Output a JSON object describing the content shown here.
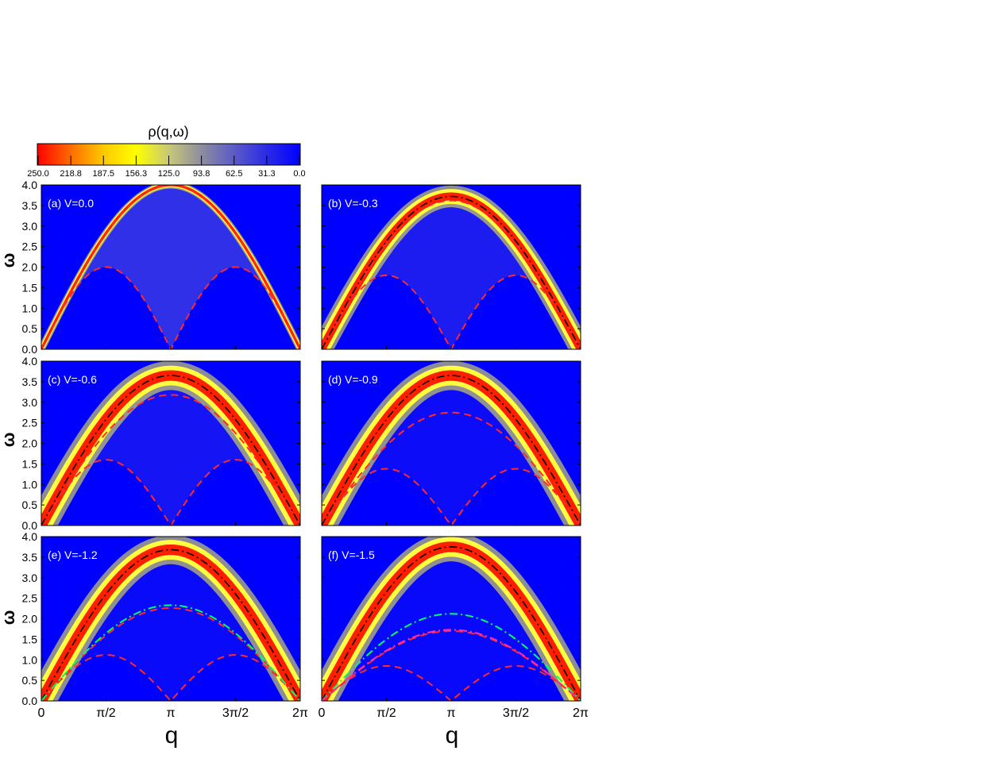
{
  "colorbar": {
    "title": "ρ(q,ω)",
    "ticks": [
      "250.0",
      "218.8",
      "187.5",
      "156.3",
      "125.0",
      "93.8",
      "62.5",
      "31.3",
      "0.0"
    ],
    "stops": [
      "#ff0000",
      "#ff6a00",
      "#ffc800",
      "#ffff00",
      "#c8c878",
      "#8c8ca0",
      "#5a5ac8",
      "#2a2ae6",
      "#0000ff"
    ]
  },
  "colors": {
    "background": "#0000ff",
    "continuum": "#5050d8",
    "peak_edge": "#ffff40",
    "peak_core": "#ff1e00",
    "dashed_bounds": "#ff2a2a",
    "black_dashdot": "#000000",
    "green_dashdot": "#00ff60",
    "magenta_dashdot": "#ff2aa0"
  },
  "axes": {
    "ylabel": "ω",
    "xlabel": "q",
    "yticks": [
      "0.0",
      "0.5",
      "1.0",
      "1.5",
      "2.0",
      "2.5",
      "3.0",
      "3.5",
      "4.0"
    ],
    "xticks": [
      "0",
      "π/2",
      "π",
      "3π/2",
      "2π"
    ],
    "ylim": [
      0,
      4
    ],
    "xlim_pi_units": [
      0,
      2
    ]
  },
  "chart_data": [
    {
      "type": "heatmap",
      "label": "(a) V=0.0",
      "V": 0.0,
      "upper_bound_max": 4.0,
      "lower_bound_max": 2.0,
      "peak_max": 4.0,
      "peak_width": 0.02,
      "black_dashdot": false,
      "green_dashdot_max": null,
      "magenta_dashdot_max": null,
      "continuum": 0.6
    },
    {
      "type": "heatmap",
      "label": "(b) V=-0.3",
      "V": -0.3,
      "upper_bound_max": 3.62,
      "lower_bound_max": 1.8,
      "peak_max": 3.72,
      "peak_width": 0.06,
      "black_dashdot": true,
      "green_dashdot_max": null,
      "magenta_dashdot_max": null,
      "continuum": 0.35
    },
    {
      "type": "heatmap",
      "label": "(c) V=-0.6",
      "V": -0.6,
      "upper_bound_max": 3.18,
      "lower_bound_max": 1.6,
      "peak_max": 3.65,
      "peak_width": 0.08,
      "black_dashdot": true,
      "green_dashdot_max": null,
      "magenta_dashdot_max": null,
      "continuum": 0.25
    },
    {
      "type": "heatmap",
      "label": "(d) V=-0.9",
      "V": -0.9,
      "upper_bound_max": 2.75,
      "lower_bound_max": 1.38,
      "peak_max": 3.65,
      "peak_width": 0.08,
      "black_dashdot": true,
      "green_dashdot_max": null,
      "magenta_dashdot_max": null,
      "continuum": 0.15
    },
    {
      "type": "heatmap",
      "label": "(e) V=-1.2",
      "V": -1.2,
      "upper_bound_max": 2.26,
      "lower_bound_max": 1.12,
      "peak_max": 3.68,
      "peak_width": 0.08,
      "black_dashdot": true,
      "green_dashdot_max": 2.33,
      "magenta_dashdot_max": null,
      "continuum": 0.12
    },
    {
      "type": "heatmap",
      "label": "(f) V=-1.5",
      "V": -1.5,
      "upper_bound_max": 1.7,
      "lower_bound_max": 0.85,
      "peak_max": 3.75,
      "peak_width": 0.08,
      "black_dashdot": true,
      "green_dashdot_max": 2.12,
      "magenta_dashdot_max": 1.73,
      "continuum": 0.1
    }
  ]
}
